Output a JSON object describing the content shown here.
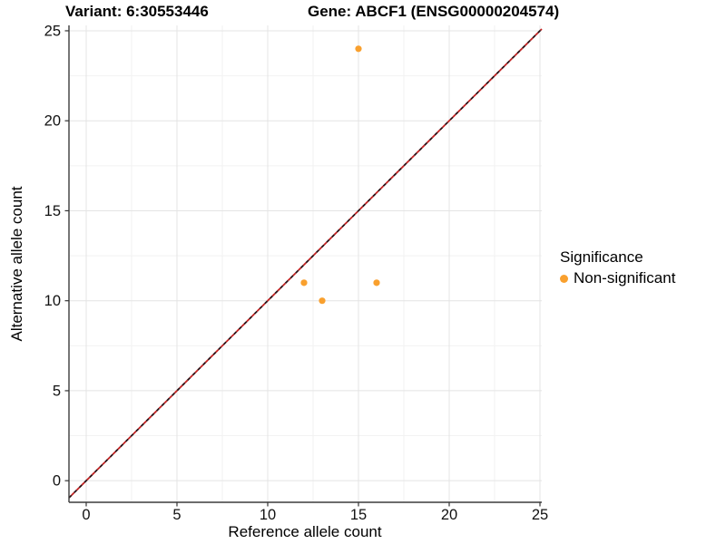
{
  "chart_data": {
    "type": "scatter",
    "title_left": "Variant: 6:30553446",
    "title_right": "Gene: ABCF1 (ENSG00000204574)",
    "xlabel": "Reference allele count",
    "ylabel": "Alternative allele count",
    "xlim": [
      -0.95,
      25.1
    ],
    "ylim": [
      -1.2,
      25.3
    ],
    "xticks": [
      0,
      5,
      10,
      15,
      20,
      25
    ],
    "yticks": [
      0,
      5,
      10,
      15,
      20,
      25
    ],
    "minor_xticks": [
      2.5,
      7.5,
      12.5,
      17.5,
      22.5
    ],
    "minor_yticks": [
      2.5,
      7.5,
      12.5,
      17.5,
      22.5
    ],
    "grid": true,
    "series": [
      {
        "name": "Non-significant",
        "color": "#F9A02E",
        "points": [
          [
            12,
            11
          ],
          [
            13,
            10
          ],
          [
            15,
            24
          ],
          [
            16,
            11
          ]
        ]
      }
    ],
    "abline": {
      "slope": 1,
      "intercept": 0,
      "style": "dashed",
      "dash_colors": [
        "#2A1015",
        "#C42020"
      ]
    },
    "legend": {
      "position": "right",
      "title": "Significance",
      "items": [
        {
          "label": "Non-significant",
          "color": "#F9A02E"
        }
      ]
    },
    "style": {
      "background": "#ffffff",
      "major_grid_color": "#E4E4E4",
      "minor_grid_color": "#F2F2F2",
      "axis_line_color": "#3C3C3C",
      "tick_color": "#333333",
      "tick_label_color": "#111111",
      "point_color": "#F9A02E"
    }
  }
}
